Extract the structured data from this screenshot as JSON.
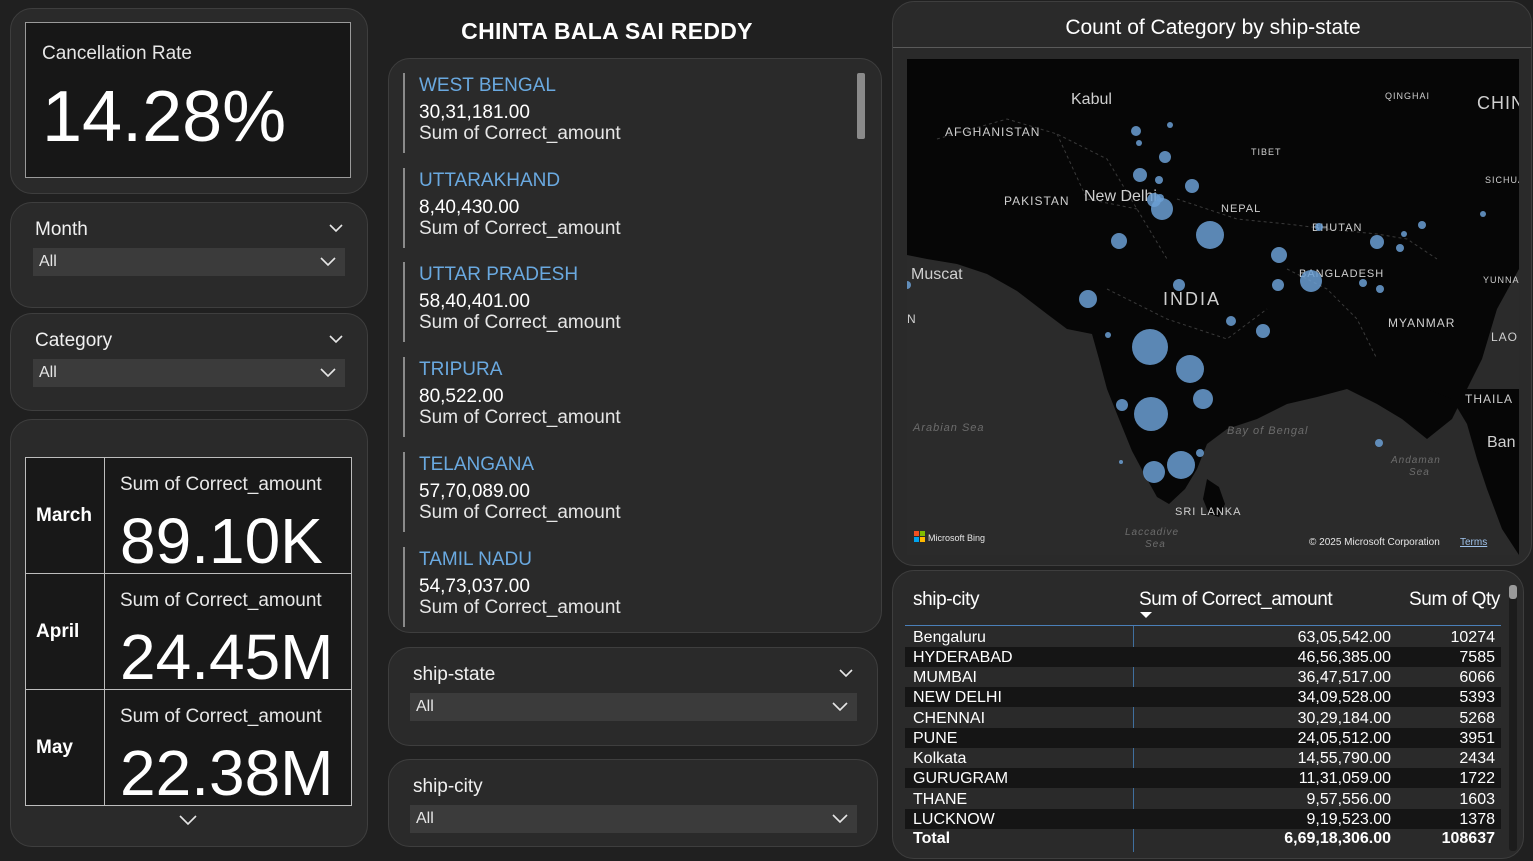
{
  "report_title": "CHINTA BALA SAI REDDY",
  "kpi": {
    "label": "Cancellation Rate",
    "value": "14.28%"
  },
  "slicers": {
    "month": {
      "title": "Month",
      "value": "All"
    },
    "category": {
      "title": "Category",
      "value": "All"
    },
    "ship_state": {
      "title": "ship-state",
      "value": "All"
    },
    "ship_city": {
      "title": "ship-city",
      "value": "All"
    }
  },
  "month_cards": [
    {
      "month": "March",
      "label": "Sum of Correct_amount",
      "value": "89.10K"
    },
    {
      "month": "April",
      "label": "Sum of Correct_amount",
      "value": "24.45M"
    },
    {
      "month": "May",
      "label": "Sum of Correct_amount",
      "value": "22.38M"
    }
  ],
  "state_list": [
    {
      "state": "WEST BENGAL",
      "value": "30,31,181.00",
      "label": "Sum of Correct_amount"
    },
    {
      "state": "UTTARAKHAND",
      "value": "8,40,430.00",
      "label": "Sum of Correct_amount"
    },
    {
      "state": "UTTAR PRADESH",
      "value": "58,40,401.00",
      "label": "Sum of Correct_amount"
    },
    {
      "state": "TRIPURA",
      "value": "80,522.00",
      "label": "Sum of Correct_amount"
    },
    {
      "state": "TELANGANA",
      "value": "57,70,089.00",
      "label": "Sum of Correct_amount"
    },
    {
      "state": "TAMIL NADU",
      "value": "54,73,037.00",
      "label": "Sum of Correct_amount"
    }
  ],
  "map": {
    "title": "Count of Category by ship-state",
    "labels": {
      "kabul": "Kabul",
      "afghanistan": "AFGHANISTAN",
      "qinghai": "QINGHAI",
      "china": "CHIN",
      "tibet": "TIBET",
      "sichuan": "SICHUA",
      "pakistan": "PAKISTAN",
      "new_delhi": "New Delhi",
      "nepal": "NEPAL",
      "bhutan": "BHUTAN",
      "muscat": "Muscat",
      "bangladesh": "BANGLADESH",
      "yunnan": "YUNNA",
      "india": "INDIA",
      "myanmar": "MYANMAR",
      "lao": "LAO",
      "thailand": "THAILA",
      "arabian_sea": "Arabian Sea",
      "bay_of_bengal": "Bay of Bengal",
      "bangkok": "Ban",
      "andaman_sea_1": "Andaman",
      "andaman_sea_2": "Sea",
      "sri_lanka": "SRI LANKA",
      "laccadive_1": "Laccadive",
      "laccadive_2": "Sea",
      "n_edge": "N"
    },
    "bing": "Microsoft Bing",
    "copyright": "© 2025 Microsoft Corporation",
    "terms": "Terms",
    "bubble_color": "#6b9fd4"
  },
  "city_table": {
    "headers": [
      "ship-city",
      "Sum of Correct_amount",
      "Sum of Qty"
    ],
    "rows": [
      [
        "Bengaluru",
        "63,05,542.00",
        "10274"
      ],
      [
        "HYDERABAD",
        "46,56,385.00",
        "7585"
      ],
      [
        "MUMBAI",
        "36,47,517.00",
        "6066"
      ],
      [
        "NEW DELHI",
        "34,09,528.00",
        "5393"
      ],
      [
        "CHENNAI",
        "30,29,184.00",
        "5268"
      ],
      [
        "PUNE",
        "24,05,512.00",
        "3951"
      ],
      [
        "Kolkata",
        "14,55,790.00",
        "2434"
      ],
      [
        "GURUGRAM",
        "11,31,059.00",
        "1722"
      ],
      [
        "THANE",
        "9,57,556.00",
        "1603"
      ],
      [
        "LUCKNOW",
        "9,19,523.00",
        "1378"
      ]
    ],
    "total": [
      "Total",
      "6,69,18,306.00",
      "108637"
    ]
  },
  "colors": {
    "accent": "#6aa9e0",
    "background": "#202020",
    "card": "#2a2a2a"
  }
}
